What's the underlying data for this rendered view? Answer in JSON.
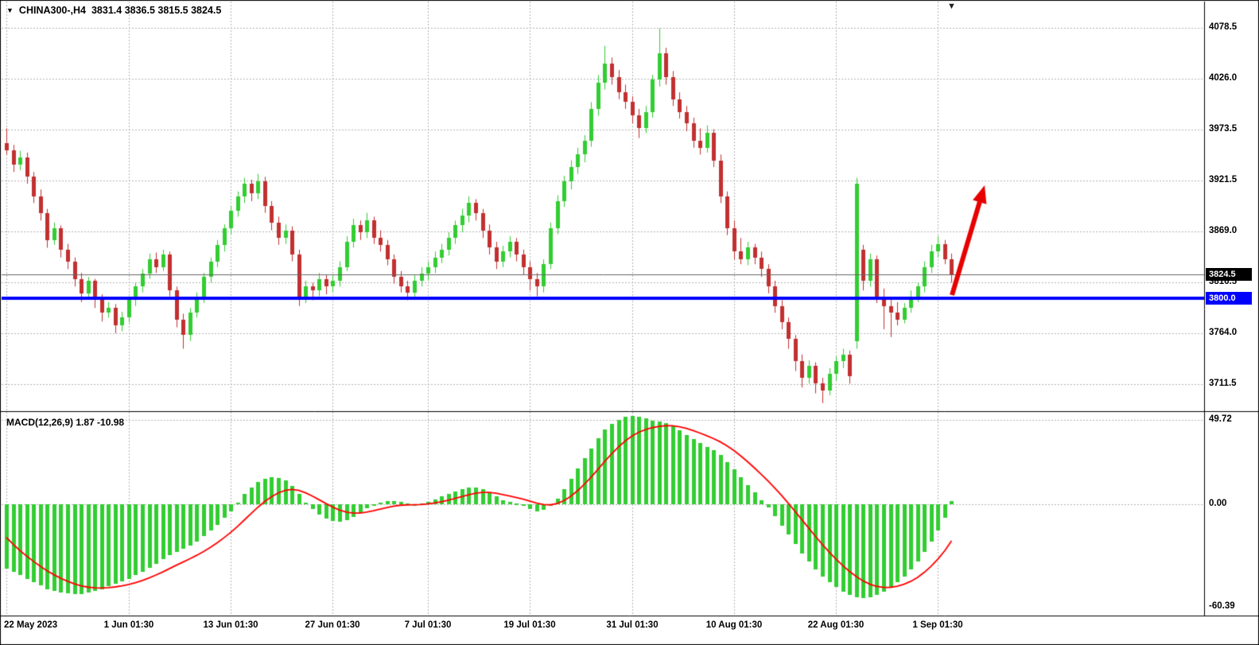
{
  "header": {
    "collapse_icon": "▼",
    "symbol": "CHINA300-,H4",
    "ohlc": "3831.4 3836.5 3815.5 3824.5"
  },
  "shift_marker_icon": "▼",
  "macd_panel": {
    "label": "MACD(12,26,9) 1.87 -10.98"
  },
  "price_axis": {
    "ticks": [
      "4078.5",
      "4026.0",
      "3973.5",
      "3921.5",
      "3869.0",
      "3816.5",
      "3764.0",
      "3711.5"
    ],
    "current_price_badge": {
      "text": "3824.5",
      "bg": "#000000"
    },
    "hline_badge": {
      "text": "3800.0",
      "bg": "#0000FF"
    }
  },
  "macd_axis": {
    "ticks": [
      "49.72",
      "0.00",
      "-60.39"
    ]
  },
  "time_axis": {
    "ticks": [
      {
        "label": "22 May 2023",
        "i": 0
      },
      {
        "label": "1 Jun 01:30",
        "i": 18
      },
      {
        "label": "13 Jun 01:30",
        "i": 33
      },
      {
        "label": "27 Jun 01:30",
        "i": 48
      },
      {
        "label": "7 Jul 01:30",
        "i": 62
      },
      {
        "label": "19 Jul 01:30",
        "i": 77
      },
      {
        "label": "31 Jul 01:30",
        "i": 92
      },
      {
        "label": "10 Aug 01:30",
        "i": 107
      },
      {
        "label": "22 Aug 01:30",
        "i": 122
      },
      {
        "label": "1 Sep 01:30",
        "i": 137
      }
    ]
  },
  "colors": {
    "up": "#32CD32",
    "down": "#C23030",
    "grid": "#b4b4b4",
    "hline": "#0000FF",
    "signal": "#FF0000",
    "histogram": "#32CD32",
    "arrow": "#E60000",
    "last_price_line": "#666666",
    "border": "#000000"
  },
  "chart_data": [
    {
      "type": "candlestick",
      "title": "CHINA300-,H4",
      "timeframe": "H4",
      "ohlc_current": {
        "open": 3831.4,
        "high": 3836.5,
        "low": 3815.5,
        "close": 3824.5
      },
      "ylim": [
        3690,
        4101
      ],
      "yticks": [
        4078.5,
        4026.0,
        3973.5,
        3921.5,
        3869.0,
        3816.5,
        3764.0,
        3711.5
      ],
      "horizontal_line": 3800.0,
      "last_price": 3824.5,
      "annotation": "red-up-arrow",
      "candles": [
        [
          3960,
          3975,
          3948,
          3952
        ],
        [
          3952,
          3958,
          3930,
          3938
        ],
        [
          3938,
          3952,
          3932,
          3945
        ],
        [
          3945,
          3950,
          3918,
          3925
        ],
        [
          3925,
          3930,
          3898,
          3905
        ],
        [
          3905,
          3912,
          3880,
          3888
        ],
        [
          3888,
          3892,
          3852,
          3860
        ],
        [
          3860,
          3878,
          3855,
          3872
        ],
        [
          3872,
          3875,
          3842,
          3850
        ],
        [
          3850,
          3856,
          3830,
          3838
        ],
        [
          3838,
          3842,
          3812,
          3820
        ],
        [
          3820,
          3826,
          3796,
          3805
        ],
        [
          3805,
          3822,
          3800,
          3818
        ],
        [
          3818,
          3820,
          3790,
          3798
        ],
        [
          3798,
          3804,
          3776,
          3785
        ],
        [
          3785,
          3796,
          3780,
          3790
        ],
        [
          3790,
          3794,
          3764,
          3772
        ],
        [
          3772,
          3786,
          3766,
          3780
        ],
        [
          3780,
          3802,
          3775,
          3798
        ],
        [
          3798,
          3816,
          3792,
          3812
        ],
        [
          3812,
          3830,
          3806,
          3825
        ],
        [
          3825,
          3846,
          3820,
          3840
        ],
        [
          3840,
          3847,
          3826,
          3832
        ],
        [
          3832,
          3850,
          3828,
          3845
        ],
        [
          3845,
          3848,
          3802,
          3808
        ],
        [
          3808,
          3812,
          3770,
          3778
        ],
        [
          3778,
          3784,
          3748,
          3762
        ],
        [
          3762,
          3790,
          3756,
          3785
        ],
        [
          3785,
          3806,
          3780,
          3800
        ],
        [
          3800,
          3826,
          3795,
          3822
        ],
        [
          3822,
          3842,
          3816,
          3838
        ],
        [
          3838,
          3860,
          3832,
          3855
        ],
        [
          3855,
          3876,
          3848,
          3872
        ],
        [
          3872,
          3895,
          3866,
          3890
        ],
        [
          3890,
          3910,
          3884,
          3905
        ],
        [
          3905,
          3924,
          3898,
          3918
        ],
        [
          3918,
          3922,
          3900,
          3908
        ],
        [
          3908,
          3928,
          3902,
          3920
        ],
        [
          3920,
          3925,
          3888,
          3895
        ],
        [
          3895,
          3900,
          3870,
          3878
        ],
        [
          3878,
          3884,
          3855,
          3862
        ],
        [
          3862,
          3876,
          3856,
          3870
        ],
        [
          3870,
          3874,
          3838,
          3845
        ],
        [
          3845,
          3850,
          3792,
          3800
        ],
        [
          3800,
          3818,
          3795,
          3812
        ],
        [
          3812,
          3816,
          3798,
          3808
        ],
        [
          3808,
          3826,
          3802,
          3820
        ],
        [
          3820,
          3824,
          3804,
          3812
        ],
        [
          3812,
          3824,
          3806,
          3818
        ],
        [
          3818,
          3838,
          3812,
          3832
        ],
        [
          3832,
          3864,
          3828,
          3858
        ],
        [
          3858,
          3882,
          3852,
          3875
        ],
        [
          3875,
          3880,
          3860,
          3868
        ],
        [
          3868,
          3888,
          3862,
          3880
        ],
        [
          3880,
          3884,
          3856,
          3862
        ],
        [
          3862,
          3870,
          3848,
          3855
        ],
        [
          3855,
          3860,
          3834,
          3840
        ],
        [
          3840,
          3845,
          3815,
          3822
        ],
        [
          3822,
          3828,
          3806,
          3812
        ],
        [
          3812,
          3818,
          3798,
          3806
        ],
        [
          3806,
          3824,
          3800,
          3818
        ],
        [
          3818,
          3832,
          3812,
          3825
        ],
        [
          3825,
          3838,
          3818,
          3832
        ],
        [
          3832,
          3848,
          3826,
          3842
        ],
        [
          3842,
          3856,
          3836,
          3850
        ],
        [
          3850,
          3868,
          3844,
          3862
        ],
        [
          3862,
          3880,
          3856,
          3875
        ],
        [
          3875,
          3892,
          3868,
          3885
        ],
        [
          3885,
          3905,
          3878,
          3898
        ],
        [
          3898,
          3902,
          3880,
          3888
        ],
        [
          3888,
          3892,
          3862,
          3870
        ],
        [
          3870,
          3876,
          3845,
          3852
        ],
        [
          3852,
          3858,
          3830,
          3838
        ],
        [
          3838,
          3854,
          3832,
          3848
        ],
        [
          3848,
          3864,
          3842,
          3858
        ],
        [
          3858,
          3862,
          3838,
          3845
        ],
        [
          3845,
          3850,
          3824,
          3832
        ],
        [
          3832,
          3838,
          3808,
          3820
        ],
        [
          3820,
          3826,
          3802,
          3812
        ],
        [
          3812,
          3840,
          3806,
          3835
        ],
        [
          3835,
          3878,
          3830,
          3872
        ],
        [
          3872,
          3906,
          3866,
          3900
        ],
        [
          3900,
          3926,
          3894,
          3920
        ],
        [
          3920,
          3942,
          3912,
          3935
        ],
        [
          3935,
          3955,
          3928,
          3948
        ],
        [
          3948,
          3968,
          3940,
          3962
        ],
        [
          3962,
          4002,
          3956,
          3995
        ],
        [
          3995,
          4030,
          3988,
          4022
        ],
        [
          4022,
          4060,
          4015,
          4042
        ],
        [
          4042,
          4048,
          4020,
          4028
        ],
        [
          4028,
          4035,
          4005,
          4012
        ],
        [
          4012,
          4020,
          3995,
          4002
        ],
        [
          4002,
          4008,
          3980,
          3988
        ],
        [
          3988,
          3995,
          3965,
          3975
        ],
        [
          3975,
          3998,
          3970,
          3992
        ],
        [
          3992,
          4030,
          3986,
          4025
        ],
        [
          4025,
          4078,
          4018,
          4052
        ],
        [
          4052,
          4058,
          4020,
          4028
        ],
        [
          4028,
          4034,
          3998,
          4005
        ],
        [
          4005,
          4012,
          3985,
          3992
        ],
        [
          3992,
          3998,
          3972,
          3980
        ],
        [
          3980,
          3986,
          3955,
          3962
        ],
        [
          3962,
          3975,
          3948,
          3955
        ],
        [
          3955,
          3978,
          3950,
          3970
        ],
        [
          3970,
          3974,
          3935,
          3942
        ],
        [
          3942,
          3948,
          3898,
          3905
        ],
        [
          3905,
          3910,
          3865,
          3872
        ],
        [
          3872,
          3880,
          3840,
          3848
        ],
        [
          3848,
          3862,
          3835,
          3840
        ],
        [
          3840,
          3858,
          3834,
          3852
        ],
        [
          3852,
          3856,
          3835,
          3842
        ],
        [
          3842,
          3848,
          3822,
          3830
        ],
        [
          3830,
          3835,
          3805,
          3812
        ],
        [
          3812,
          3818,
          3785,
          3792
        ],
        [
          3792,
          3798,
          3768,
          3775
        ],
        [
          3775,
          3780,
          3748,
          3758
        ],
        [
          3758,
          3762,
          3725,
          3735
        ],
        [
          3735,
          3742,
          3708,
          3718
        ],
        [
          3718,
          3736,
          3712,
          3730
        ],
        [
          3730,
          3734,
          3702,
          3712
        ],
        [
          3712,
          3718,
          3692,
          3705
        ],
        [
          3705,
          3728,
          3700,
          3722
        ],
        [
          3722,
          3740,
          3715,
          3735
        ],
        [
          3735,
          3748,
          3728,
          3742
        ],
        [
          3742,
          3746,
          3712,
          3720
        ],
        [
          3756,
          3924,
          3748,
          3918
        ],
        [
          3850,
          3855,
          3808,
          3818
        ],
        [
          3818,
          3846,
          3812,
          3840
        ],
        [
          3840,
          3844,
          3795,
          3802
        ],
        [
          3802,
          3810,
          3768,
          3792
        ],
        [
          3792,
          3800,
          3760,
          3785
        ],
        [
          3785,
          3796,
          3772,
          3778
        ],
        [
          3778,
          3795,
          3774,
          3790
        ],
        [
          3790,
          3808,
          3785,
          3802
        ],
        [
          3802,
          3816,
          3796,
          3812
        ],
        [
          3812,
          3838,
          3806,
          3832
        ],
        [
          3832,
          3855,
          3826,
          3848
        ],
        [
          3848,
          3864,
          3842,
          3856
        ],
        [
          3856,
          3860,
          3835,
          3840
        ],
        [
          3840,
          3846,
          3816,
          3824.5
        ]
      ]
    },
    {
      "type": "bar",
      "name": "MACD(12,26,9)",
      "current_macd": 1.87,
      "current_signal": -10.98,
      "ylim": [
        -60.39,
        49.72
      ],
      "yticks": [
        49.72,
        0.0,
        -60.39
      ],
      "signal_period": 9,
      "signal_seed": -15,
      "values": [
        -38,
        -40,
        -42,
        -44,
        -46,
        -48,
        -50,
        -51,
        -52,
        -52.5,
        -53,
        -53,
        -52,
        -51,
        -50,
        -48.5,
        -47,
        -45.5,
        -44,
        -42,
        -40,
        -37.5,
        -35,
        -32.5,
        -30,
        -28,
        -26.5,
        -24.5,
        -22,
        -19,
        -15.5,
        -12,
        -8,
        -4,
        1,
        6,
        10,
        13,
        15,
        16,
        15.5,
        14,
        11,
        6,
        1,
        -3,
        -6,
        -8.5,
        -10,
        -10.5,
        -9.5,
        -7.5,
        -5,
        -2.5,
        -0.5,
        1,
        2,
        2,
        1.5,
        0.5,
        0,
        0.5,
        1.5,
        3,
        4.5,
        6,
        7.5,
        9,
        10,
        10,
        9,
        7,
        4.5,
        2.5,
        1.5,
        0.5,
        -1,
        -3,
        -4,
        -3.5,
        -1,
        3.5,
        9,
        15,
        21,
        27,
        33,
        39,
        44,
        47.5,
        50,
        51.5,
        52,
        51.5,
        50.5,
        49.5,
        49,
        48,
        46,
        43.5,
        41,
        38.5,
        36,
        34,
        32,
        29,
        25,
        20.5,
        16,
        11.5,
        7,
        2.5,
        -2,
        -7,
        -12.5,
        -18,
        -23.5,
        -29,
        -34,
        -38.5,
        -42.5,
        -46,
        -49,
        -51.5,
        -53.5,
        -55,
        -55.5,
        -55,
        -53.5,
        -51.5,
        -49,
        -46,
        -42.5,
        -38.5,
        -34,
        -28,
        -22,
        -15.5,
        -8,
        1.87
      ]
    }
  ]
}
